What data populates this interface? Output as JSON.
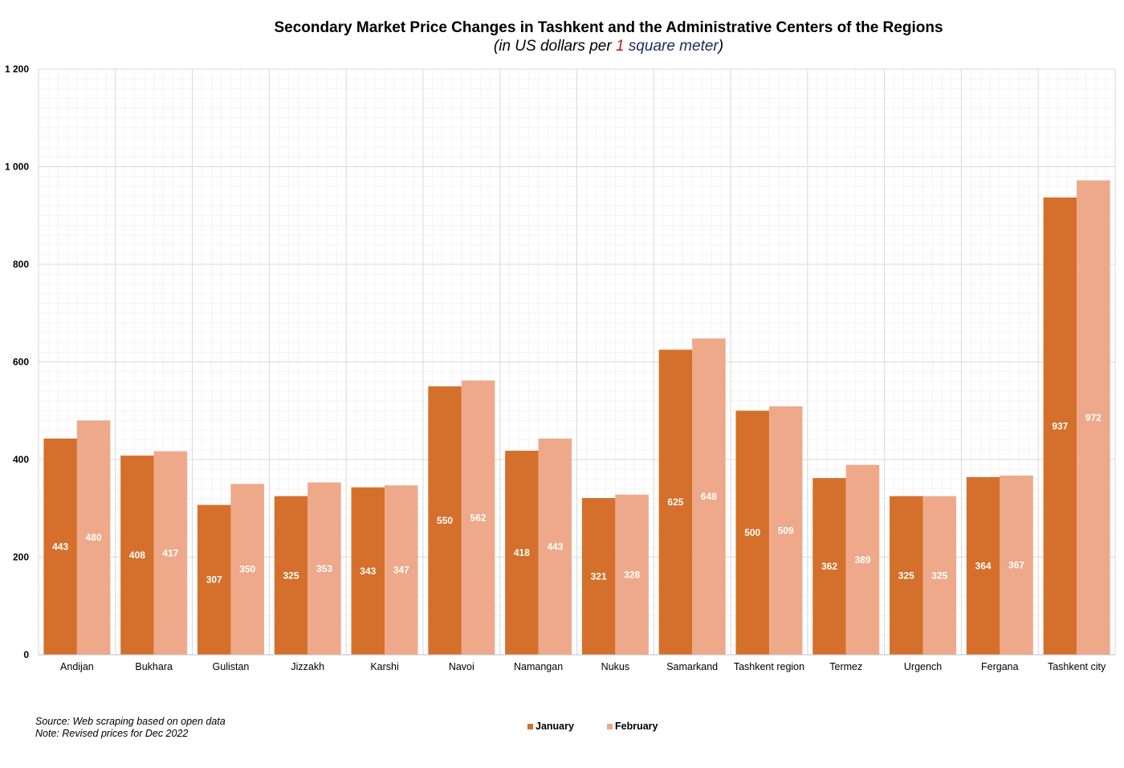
{
  "title": "Secondary Market Price Changes in Tashkent and the Administrative Centers of the Regions",
  "subtitle": {
    "part1": "(in US dollars per ",
    "part2": "1",
    "part3": " square meter",
    "part4": ")"
  },
  "colors": {
    "january": "#d4702c",
    "february": "#eea98a",
    "grid_major": "#d9d9d9",
    "grid_minor": "#efefef"
  },
  "chart_data": {
    "type": "bar",
    "title": "Secondary Market Price Changes in Tashkent and the Administrative Centers of the Regions",
    "subtitle": "(in US dollars per 1 square meter)",
    "categories": [
      "Andijan",
      "Bukhara",
      "Gulistan",
      "Jizzakh",
      "Karshi",
      "Navoi",
      "Namangan",
      "Nukus",
      "Samarkand",
      "Tashkent region",
      "Termez",
      "Urgench",
      "Fergana",
      "Tashkent city"
    ],
    "series": [
      {
        "name": "January",
        "values": [
          443,
          408,
          307,
          325,
          343,
          550,
          418,
          321,
          625,
          500,
          362,
          325,
          364,
          937
        ]
      },
      {
        "name": "February",
        "values": [
          480,
          417,
          350,
          353,
          347,
          562,
          443,
          328,
          648,
          509,
          389,
          325,
          367,
          972
        ]
      }
    ],
    "ylim": [
      0,
      1200
    ],
    "yticks": [
      0,
      200,
      400,
      600,
      800,
      1000,
      1200
    ],
    "ytick_labels": [
      "0",
      "200",
      "400",
      "600",
      "800",
      "1 000",
      "1 200"
    ],
    "grid": true,
    "legend_position": "bottom-center",
    "xlabel": "",
    "ylabel": ""
  },
  "notes": {
    "source": "Source: Web scraping based on open data",
    "note": "Note: Revised prices for Dec 2022"
  },
  "legend": {
    "january": "January",
    "february": "February"
  }
}
